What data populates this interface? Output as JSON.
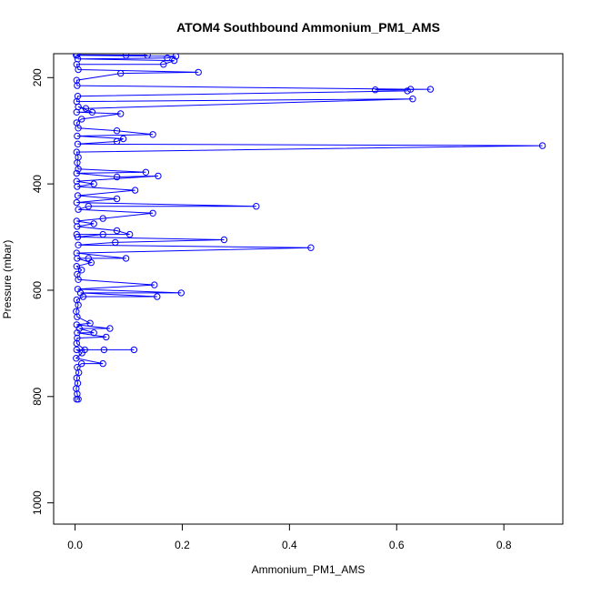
{
  "chart_data": {
    "type": "line",
    "title": "ATOM4 Southbound Ammonium_PM1_AMS",
    "xlabel": "Ammonium_PM1_AMS",
    "ylabel": "Pressure (mbar)",
    "xlim": [
      -0.04,
      0.91
    ],
    "ylim": [
      1040,
      155
    ],
    "y_reversed": true,
    "x_ticks": [
      0.0,
      0.2,
      0.4,
      0.6,
      0.8
    ],
    "x_tick_labels": [
      "0.0",
      "0.2",
      "0.4",
      "0.6",
      "0.8"
    ],
    "y_ticks": [
      200,
      400,
      600,
      800,
      1000
    ],
    "y_tick_labels": [
      "200",
      "400",
      "600",
      "800",
      "1000"
    ],
    "grid": false,
    "series": [
      {
        "color": "#0000ff",
        "marker": "open-circle",
        "points": [
          [
            0.003,
            805
          ],
          [
            0.006,
            805
          ],
          [
            0.004,
            795
          ],
          [
            0.002,
            785
          ],
          [
            0.005,
            775
          ],
          [
            0.003,
            765
          ],
          [
            0.007,
            755
          ],
          [
            0.004,
            745
          ],
          [
            0.012,
            738
          ],
          [
            0.052,
            738
          ],
          [
            0.002,
            728
          ],
          [
            0.013,
            718
          ],
          [
            0.003,
            712
          ],
          [
            0.054,
            712
          ],
          [
            0.11,
            712
          ],
          [
            0.018,
            712
          ],
          [
            0.003,
            700
          ],
          [
            0.004,
            690
          ],
          [
            0.058,
            688
          ],
          [
            0.004,
            680
          ],
          [
            0.035,
            680
          ],
          [
            0.008,
            672
          ],
          [
            0.065,
            672
          ],
          [
            0.003,
            665
          ],
          [
            0.028,
            662
          ],
          [
            0.004,
            650
          ],
          [
            0.002,
            640
          ],
          [
            0.006,
            628
          ],
          [
            0.003,
            618
          ],
          [
            0.015,
            612
          ],
          [
            0.153,
            612
          ],
          [
            0.01,
            605
          ],
          [
            0.198,
            605
          ],
          [
            0.005,
            598
          ],
          [
            0.148,
            590
          ],
          [
            0.006,
            580
          ],
          [
            0.004,
            570
          ],
          [
            0.012,
            562
          ],
          [
            0.003,
            555
          ],
          [
            0.03,
            548
          ],
          [
            0.004,
            540
          ],
          [
            0.025,
            540
          ],
          [
            0.095,
            540
          ],
          [
            0.003,
            530
          ],
          [
            0.44,
            520
          ],
          [
            0.006,
            515
          ],
          [
            0.075,
            510
          ],
          [
            0.278,
            505
          ],
          [
            0.005,
            500
          ],
          [
            0.052,
            495
          ],
          [
            0.003,
            495
          ],
          [
            0.102,
            495
          ],
          [
            0.078,
            488
          ],
          [
            0.004,
            480
          ],
          [
            0.035,
            475
          ],
          [
            0.003,
            470
          ],
          [
            0.052,
            465
          ],
          [
            0.145,
            455
          ],
          [
            0.006,
            448
          ],
          [
            0.025,
            442
          ],
          [
            0.338,
            442
          ],
          [
            0.003,
            435
          ],
          [
            0.078,
            428
          ],
          [
            0.005,
            422
          ],
          [
            0.112,
            412
          ],
          [
            0.004,
            405
          ],
          [
            0.035,
            400
          ],
          [
            0.003,
            395
          ],
          [
            0.155,
            385
          ],
          [
            0.078,
            387
          ],
          [
            0.003,
            380
          ],
          [
            0.132,
            378
          ],
          [
            0.006,
            372
          ],
          [
            0.004,
            360
          ],
          [
            0.006,
            350
          ],
          [
            0.003,
            340
          ],
          [
            0.872,
            328
          ],
          [
            0.005,
            325
          ],
          [
            0.078,
            320
          ],
          [
            0.09,
            315
          ],
          [
            0.004,
            310
          ],
          [
            0.145,
            307
          ],
          [
            0.078,
            300
          ],
          [
            0.006,
            295
          ],
          [
            0.003,
            285
          ],
          [
            0.012,
            278
          ],
          [
            0.085,
            268
          ],
          [
            0.003,
            265
          ],
          [
            0.032,
            265
          ],
          [
            0.006,
            255
          ],
          [
            0.02,
            258
          ],
          [
            0.63,
            240
          ],
          [
            0.003,
            245
          ],
          [
            0.005,
            235
          ],
          [
            0.62,
            225
          ],
          [
            0.56,
            223
          ],
          [
            0.663,
            222
          ],
          [
            0.626,
            222
          ],
          [
            0.004,
            215
          ],
          [
            0.003,
            205
          ],
          [
            0.085,
            192
          ],
          [
            0.23,
            190
          ],
          [
            0.006,
            185
          ],
          [
            0.003,
            175
          ],
          [
            0.165,
            175
          ],
          [
            0.185,
            168
          ],
          [
            0.005,
            165
          ],
          [
            0.172,
            163
          ],
          [
            0.188,
            160
          ],
          [
            0.002,
            158
          ],
          [
            0.095,
            158
          ],
          [
            0.135,
            158
          ],
          [
            0.004,
            157
          ]
        ]
      }
    ]
  }
}
